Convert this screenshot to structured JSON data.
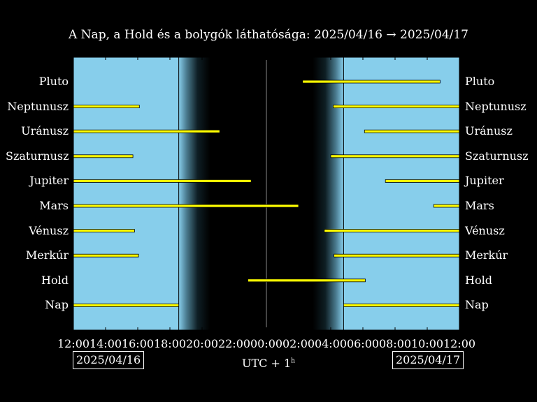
{
  "title": "A Nap, a Hold és a bolygók láthatósága: 2025/04/16 → 2025/04/17",
  "timezone": "UTC + 1",
  "timezone_sup": "h",
  "date_left": "2025/04/16",
  "date_right": "2025/04/17",
  "colors": {
    "day": "#87ceeb",
    "night": "#000000",
    "bar": "#ffff00"
  },
  "chart_data": {
    "type": "bar",
    "orientation": "horizontal-range",
    "x_unit": "hours since 2025/04/16 12:00 (UTC+1)",
    "xlim": [
      0,
      24
    ],
    "x_tick_labels": [
      "12:00",
      "14:00",
      "16:00",
      "18:00",
      "20:00",
      "22:00",
      "00:00",
      "02:00",
      "04:00",
      "06:00",
      "08:00",
      "10:00",
      "12:00"
    ],
    "sunset": 6.55,
    "sunrise": 16.8,
    "civil_dusk_end": 8.5,
    "dawn_start": 14.9,
    "midnight": 12,
    "rows": [
      {
        "name": "Pluto",
        "intervals": [
          [
            14.25,
            22.8
          ]
        ]
      },
      {
        "name": "Neptunusz",
        "intervals": [
          [
            0,
            4.1
          ],
          [
            16.15,
            24
          ]
        ]
      },
      {
        "name": "Uránusz",
        "intervals": [
          [
            0,
            9.1
          ],
          [
            18.1,
            24
          ]
        ]
      },
      {
        "name": "Szaturnusz",
        "intervals": [
          [
            0,
            3.7
          ],
          [
            16.0,
            24
          ]
        ]
      },
      {
        "name": "Jupiter",
        "intervals": [
          [
            0,
            11.05
          ],
          [
            19.4,
            24
          ]
        ]
      },
      {
        "name": "Mars",
        "intervals": [
          [
            0,
            14.0
          ],
          [
            22.4,
            24
          ]
        ]
      },
      {
        "name": "Vénusz",
        "intervals": [
          [
            0,
            3.8
          ],
          [
            15.6,
            24
          ]
        ]
      },
      {
        "name": "Merkúr",
        "intervals": [
          [
            0,
            4.05
          ],
          [
            16.2,
            24
          ]
        ]
      },
      {
        "name": "Hold",
        "intervals": [
          [
            10.85,
            18.15
          ]
        ]
      },
      {
        "name": "Nap",
        "intervals": [
          [
            0,
            6.55
          ],
          [
            16.8,
            24
          ]
        ]
      }
    ]
  }
}
